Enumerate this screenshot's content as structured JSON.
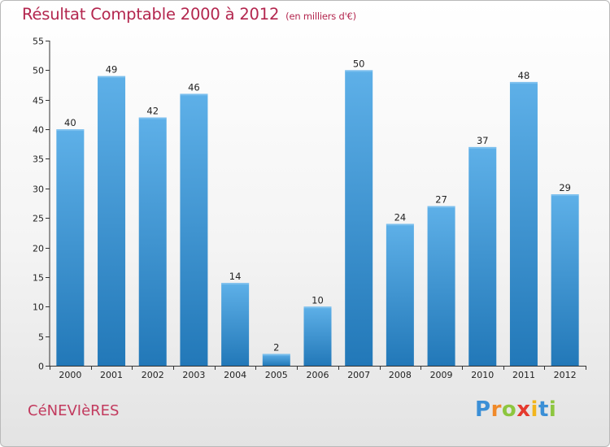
{
  "chart_data": {
    "type": "bar",
    "title": "Résultat Comptable 2000 à 2012",
    "unit": "(en milliers d'€)",
    "categories": [
      "2000",
      "2001",
      "2002",
      "2003",
      "2004",
      "2005",
      "2006",
      "2007",
      "2008",
      "2009",
      "2010",
      "2011",
      "2012"
    ],
    "values": [
      40,
      49,
      42,
      46,
      14,
      2,
      10,
      50,
      24,
      27,
      37,
      48,
      29
    ],
    "ylim": [
      0,
      55
    ],
    "yticks": [
      0,
      5,
      10,
      15,
      20,
      25,
      30,
      35,
      40,
      45,
      50,
      55
    ],
    "xlabel": "",
    "ylabel": "",
    "grid": false,
    "colors": {
      "bar_top": "#5eb0e8",
      "bar_bottom": "#2278b8",
      "axis": "#333333"
    }
  },
  "commune": "CéNEVIèRES",
  "logo": {
    "letters": [
      "P",
      "r",
      "o",
      "x",
      "i",
      "t",
      "i"
    ],
    "colors": [
      "#3b8fd6",
      "#f08a2a",
      "#8dc63f",
      "#e53a2e",
      "#f2b51d",
      "#3b8fd6",
      "#8dc63f"
    ]
  },
  "title_color": "#b3264e"
}
